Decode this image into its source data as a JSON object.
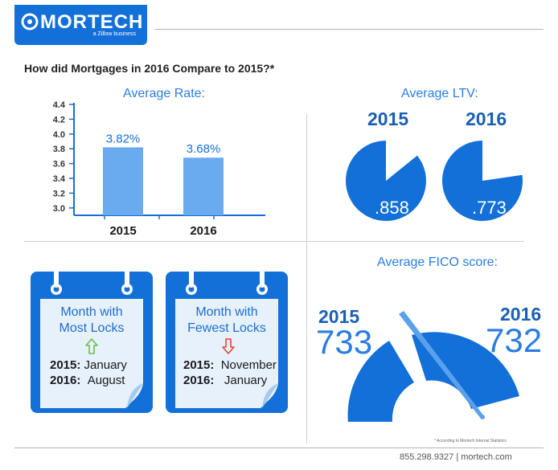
{
  "header": {
    "logo_name": "MORTECH",
    "logo_tagline": "a Zillow business",
    "headline": "How did Mortgages in 2016 Compare to 2015?*"
  },
  "colors": {
    "primary": "#1370d8",
    "accent": "#2a7de1",
    "bar": "#6aaaee",
    "dark_year": "#1a5fb4",
    "calendar_page": "#e6f1fc",
    "up_arrow": "#6cc04a",
    "down_arrow": "#e2463a"
  },
  "chart_data": [
    {
      "type": "bar",
      "title": "Average Rate:",
      "categories": [
        "2015",
        "2016"
      ],
      "values": [
        3.82,
        3.68
      ],
      "value_labels": [
        "3.82%",
        "3.68%"
      ],
      "ylim": [
        2.9,
        4.4
      ],
      "yticks": [
        "4.4",
        "4.2",
        "4.0",
        "3.8",
        "3.6",
        "3.4",
        "3.2",
        "3.0"
      ],
      "grid": false
    },
    {
      "type": "pie",
      "title": "Average LTV:",
      "categories": [
        "2015",
        "2016"
      ],
      "values": [
        0.858,
        0.773
      ],
      "value_labels": [
        ".858",
        ".773"
      ]
    }
  ],
  "calendars": [
    {
      "title_line1": "Month with",
      "title_line2": "Most Locks",
      "arrow_icon": "up-arrow-icon",
      "row1_year": "2015:",
      "row1_month": "January",
      "row2_year": "2016:",
      "row2_month": "August"
    },
    {
      "title_line1": "Month with",
      "title_line2": "Fewest Locks",
      "arrow_icon": "down-arrow-icon",
      "row1_year": "2015:",
      "row1_month": "November",
      "row2_year": "2016:",
      "row2_month": "January"
    }
  ],
  "fico": {
    "title": "Average FICO score:",
    "year_2015": "2015",
    "value_2015": "733",
    "year_2016": "2016",
    "value_2016": "732"
  },
  "footnote": "* According to Mortech Internal Statistics",
  "footer": "855.298.9327  |  mortech.com"
}
